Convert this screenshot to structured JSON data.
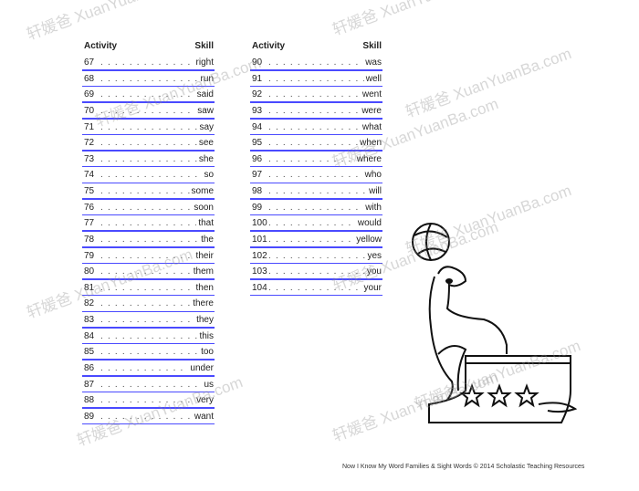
{
  "headers": {
    "activity": "Activity",
    "skill": "Skill"
  },
  "left": [
    {
      "n": "67",
      "s": "right"
    },
    {
      "n": "68",
      "s": "run"
    },
    {
      "n": "69",
      "s": "said"
    },
    {
      "n": "70",
      "s": "saw"
    },
    {
      "n": "71",
      "s": "say"
    },
    {
      "n": "72",
      "s": "see"
    },
    {
      "n": "73",
      "s": "she"
    },
    {
      "n": "74",
      "s": "so"
    },
    {
      "n": "75",
      "s": "some"
    },
    {
      "n": "76",
      "s": "soon"
    },
    {
      "n": "77",
      "s": "that"
    },
    {
      "n": "78",
      "s": "the"
    },
    {
      "n": "79",
      "s": "their"
    },
    {
      "n": "80",
      "s": "them"
    },
    {
      "n": "81",
      "s": "then"
    },
    {
      "n": "82",
      "s": "there"
    },
    {
      "n": "83",
      "s": "they"
    },
    {
      "n": "84",
      "s": "this"
    },
    {
      "n": "85",
      "s": "too"
    },
    {
      "n": "86",
      "s": "under"
    },
    {
      "n": "87",
      "s": "us"
    },
    {
      "n": "88",
      "s": "very"
    },
    {
      "n": "89",
      "s": "want"
    }
  ],
  "right": [
    {
      "n": "90",
      "s": "was"
    },
    {
      "n": "91",
      "s": "well"
    },
    {
      "n": "92",
      "s": "went"
    },
    {
      "n": "93",
      "s": "were"
    },
    {
      "n": "94",
      "s": "what"
    },
    {
      "n": "95",
      "s": "when"
    },
    {
      "n": "96",
      "s": "where"
    },
    {
      "n": "97",
      "s": "who"
    },
    {
      "n": "98",
      "s": "will"
    },
    {
      "n": "99",
      "s": "with"
    },
    {
      "n": "100",
      "s": "would"
    },
    {
      "n": "101",
      "s": "yellow"
    },
    {
      "n": "102",
      "s": "yes"
    },
    {
      "n": "103",
      "s": "you"
    },
    {
      "n": "104",
      "s": "your"
    }
  ],
  "footer": "Now I Know My Word Families & Sight Words © 2014 Scholastic Teaching Resources",
  "watermark": "轩媛爸 XuanYuanBa.com",
  "underline_color": "#4a4aff"
}
